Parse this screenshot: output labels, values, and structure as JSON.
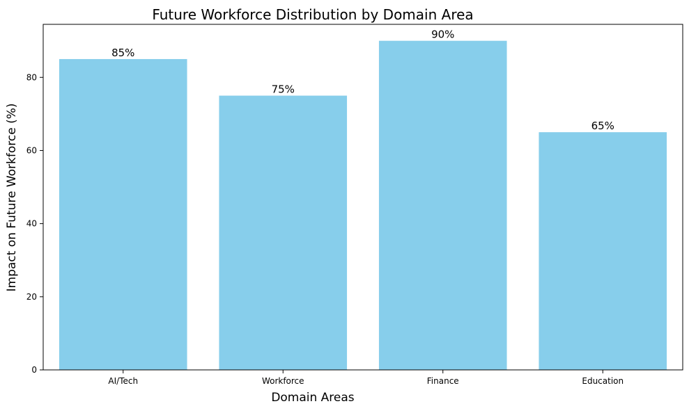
{
  "chart_data": {
    "type": "bar",
    "title": "Future Workforce Distribution by Domain Area",
    "xlabel": "Domain Areas",
    "ylabel": "Impact on Future Workforce (%)",
    "categories": [
      "AI/Tech",
      "Workforce",
      "Finance",
      "Education"
    ],
    "values": [
      85,
      75,
      90,
      65
    ],
    "data_labels": [
      "85%",
      "75%",
      "90%",
      "65%"
    ],
    "ylim": [
      0,
      94.5
    ],
    "yticks": [
      0,
      20,
      40,
      60,
      80
    ],
    "ytick_labels": [
      "0",
      "20",
      "40",
      "60",
      "80"
    ],
    "grid": false,
    "legend": "none",
    "bar_color": "#87CEEB"
  }
}
